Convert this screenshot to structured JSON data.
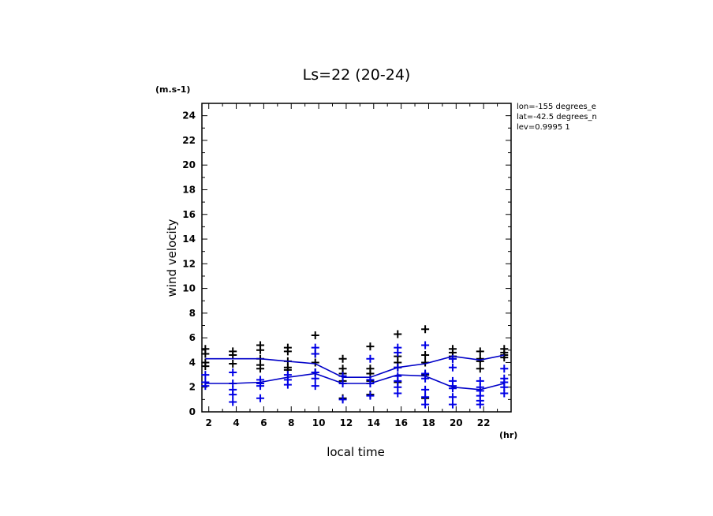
{
  "chart_data": {
    "type": "line",
    "title": "Ls=22 (20-24)",
    "xlabel": "local time",
    "ylabel": "wind velocity",
    "xunit": "(hr)",
    "yunit": "(m.s-1)",
    "annotations": [
      "lon=-155 degrees_e",
      "lat=-42.5 degrees_n",
      "lev=0.9995 1"
    ],
    "xlim": [
      1.5,
      24
    ],
    "ylim": [
      0,
      25
    ],
    "xticks": [
      2,
      4,
      6,
      8,
      10,
      12,
      14,
      16,
      18,
      20,
      22
    ],
    "yticks": [
      0,
      2,
      4,
      6,
      8,
      10,
      12,
      14,
      16,
      18,
      20,
      22,
      24
    ],
    "grid": false,
    "x": [
      1.75,
      3.75,
      5.75,
      7.75,
      9.75,
      11.75,
      13.75,
      15.75,
      17.75,
      19.75,
      21.75,
      23.5
    ],
    "series": [
      {
        "color": "#0000c8",
        "values": [
          4.3,
          4.3,
          4.3,
          4.1,
          3.9,
          2.8,
          2.8,
          3.6,
          3.9,
          4.5,
          4.2,
          4.6
        ],
        "samples": [
          [
            5.1,
            4.7,
            4.0,
            3.7
          ],
          [
            4.9,
            4.6,
            3.9
          ],
          [
            5.4,
            5.0,
            4.3,
            3.8,
            3.5
          ],
          [
            5.2,
            4.9,
            4.1,
            3.6,
            3.4
          ],
          [
            6.2,
            4.7,
            4.0,
            3.2
          ],
          [
            4.3,
            3.5,
            3.1,
            2.5,
            1.1
          ],
          [
            5.3,
            3.5,
            3.1,
            2.5,
            1.4
          ],
          [
            6.3,
            4.5,
            4.0,
            3.6,
            2.4
          ],
          [
            6.7,
            4.6,
            4.0,
            3.0,
            1.1
          ],
          [
            5.1,
            4.8,
            4.5,
            4.3
          ],
          [
            4.9,
            4.3,
            4.1,
            3.5
          ],
          [
            5.1,
            4.8,
            4.6,
            4.4
          ]
        ]
      },
      {
        "color": "#0000c8",
        "values": [
          2.3,
          2.3,
          2.4,
          2.8,
          3.1,
          2.3,
          2.3,
          3.0,
          2.9,
          2.0,
          1.8,
          2.3
        ],
        "samples": [
          [
            3.0,
            2.4,
            2.1
          ],
          [
            3.2,
            2.3,
            1.8,
            1.4,
            0.8
          ],
          [
            2.6,
            2.3,
            2.1,
            1.1
          ],
          [
            3.0,
            2.6,
            2.2
          ],
          [
            5.2,
            4.7,
            3.2,
            2.7,
            2.1
          ],
          [
            2.9,
            2.3,
            1.0
          ],
          [
            4.3,
            2.6,
            2.3,
            1.3
          ],
          [
            5.2,
            4.8,
            3.6,
            2.9,
            2.5,
            2.0,
            1.5
          ],
          [
            5.4,
            3.1,
            2.7,
            1.8,
            1.2,
            0.6
          ],
          [
            4.3,
            3.6,
            2.5,
            2.1,
            1.9,
            1.2,
            0.6
          ],
          [
            2.5,
            2.0,
            1.7,
            1.3,
            0.9,
            0.6
          ],
          [
            3.5,
            2.7,
            2.4,
            2.0,
            1.5
          ]
        ]
      }
    ]
  }
}
